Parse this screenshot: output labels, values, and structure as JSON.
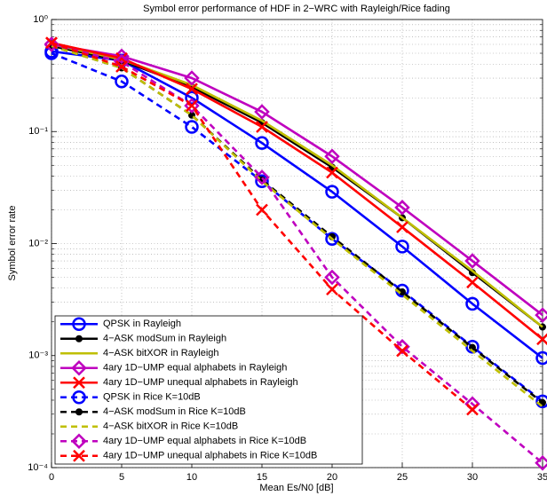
{
  "chart_data": {
    "type": "line",
    "title": "Symbol error performance of HDF in 2−WRC with Rayleigh/Rice fading",
    "x_label": "Mean Es/N0 [dB]",
    "y_label": "Symbol error rate",
    "x": [
      0,
      5,
      10,
      15,
      20,
      25,
      30,
      35
    ],
    "xlim": [
      0,
      35
    ],
    "xticks": [
      0,
      5,
      10,
      15,
      20,
      25,
      30,
      35
    ],
    "ylim": [
      0.0001,
      1
    ],
    "yticks": [
      {
        "value": 1,
        "label": "10⁰"
      },
      {
        "value": 0.1,
        "label": "10⁻¹"
      },
      {
        "value": 0.01,
        "label": "10⁻²"
      },
      {
        "value": 0.001,
        "label": "10⁻³"
      },
      {
        "value": 0.0001,
        "label": "10⁻⁴"
      }
    ],
    "log_y": true,
    "grid": true,
    "minor_grid": true,
    "legend": "lower left",
    "series": [
      {
        "name": "QPSK in Rayleigh",
        "color": "#0000ff",
        "dash": false,
        "marker": "circle",
        "values": [
          0.52,
          0.43,
          0.2,
          0.079,
          0.029,
          0.0094,
          0.0029,
          0.00095
        ]
      },
      {
        "name": "4−ASK modSum in Rayleigh",
        "color": "#000000",
        "dash": false,
        "marker": "dot",
        "values": [
          0.58,
          0.43,
          0.25,
          0.12,
          0.048,
          0.017,
          0.0055,
          0.0018
        ]
      },
      {
        "name": "4−ASK bitXOR in Rayleigh",
        "color": "#bfbf00",
        "dash": false,
        "marker": "none",
        "values": [
          0.6,
          0.44,
          0.26,
          0.125,
          0.05,
          0.017,
          0.0057,
          0.0018
        ]
      },
      {
        "name": "4ary 1D−UMP equal alphabets in Rayleigh",
        "color": "#bf00bf",
        "dash": false,
        "marker": "diamond",
        "values": [
          0.6,
          0.47,
          0.3,
          0.15,
          0.06,
          0.021,
          0.007,
          0.0023
        ]
      },
      {
        "name": "4ary 1D−UMP unequal alphabets in Rayleigh",
        "color": "#ff0000",
        "dash": false,
        "marker": "x",
        "values": [
          0.62,
          0.45,
          0.24,
          0.11,
          0.043,
          0.014,
          0.0045,
          0.0014
        ]
      },
      {
        "name": "QPSK in Rice K=10dB",
        "color": "#0000ff",
        "dash": true,
        "marker": "circle",
        "values": [
          0.5,
          0.28,
          0.11,
          0.036,
          0.011,
          0.0038,
          0.0012,
          0.00039
        ]
      },
      {
        "name": "4−ASK modSum in Rice K=10dB",
        "color": "#000000",
        "dash": true,
        "marker": "dot",
        "values": [
          0.58,
          0.37,
          0.14,
          0.037,
          0.0115,
          0.0037,
          0.00118,
          0.00038
        ]
      },
      {
        "name": "4−ASK bitXOR in Rice K=10dB",
        "color": "#bfbf00",
        "dash": true,
        "marker": "none",
        "values": [
          0.58,
          0.37,
          0.14,
          0.036,
          0.011,
          0.0035,
          0.0011,
          0.00035
        ]
      },
      {
        "name": "4ary 1D−UMP equal alphabets in Rice K=10dB",
        "color": "#bf00bf",
        "dash": true,
        "marker": "diamond",
        "values": [
          0.6,
          0.42,
          0.17,
          0.039,
          0.005,
          0.0012,
          0.00037,
          0.00011
        ]
      },
      {
        "name": "4ary 1D−UMP unequal alphabets in Rice K=10dB",
        "color": "#ff0000",
        "dash": true,
        "marker": "x",
        "values": [
          0.62,
          0.38,
          0.17,
          0.02,
          0.0039,
          0.0011,
          0.00033,
          null
        ]
      }
    ]
  }
}
